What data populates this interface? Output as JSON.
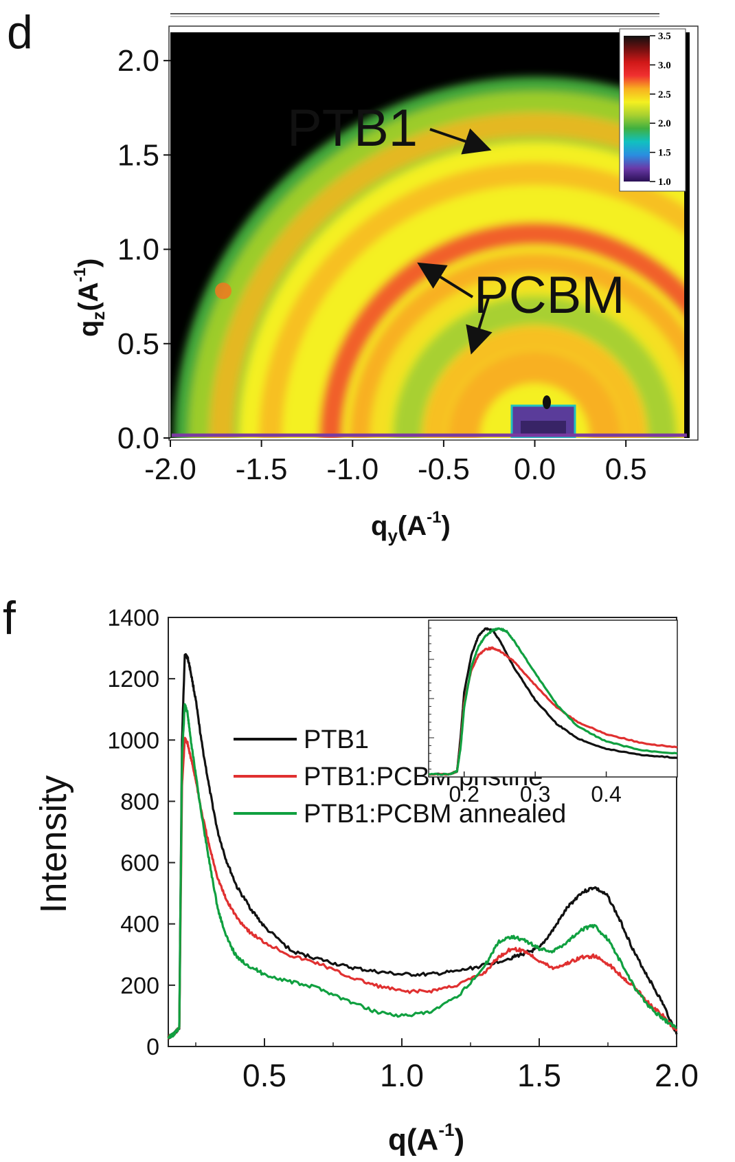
{
  "chart_data": [
    {
      "panel": "d",
      "type": "heatmap",
      "xlabel": "q",
      "xlabel_sub": "y",
      "xlabel_unit": "(A",
      "xlabel_exp": "-1",
      "xlabel_close": ")",
      "ylabel": "q",
      "ylabel_sub": "z",
      "ylabel_unit": "(A",
      "ylabel_exp": "-1",
      "ylabel_close": ")",
      "xlim": [
        -2.0,
        0.85
      ],
      "ylim": [
        0.0,
        2.15
      ],
      "x_ticks": [
        "-2.0",
        "-1.5",
        "-1.0",
        "-0.5",
        "0.0",
        "0.5"
      ],
      "x_tick_values": [
        -2.0,
        -1.5,
        -1.0,
        -0.5,
        0.0,
        0.5
      ],
      "y_ticks": [
        "0.0",
        "0.5",
        "1.0",
        "1.5",
        "2.0"
      ],
      "y_tick_values": [
        0.0,
        0.5,
        1.0,
        1.5,
        2.0
      ],
      "colorbar": {
        "range": [
          1.0,
          3.5
        ],
        "ticks": [
          "3.5",
          "3.0",
          "2.5",
          "2.0",
          "1.5",
          "1.0"
        ],
        "tick_values": [
          3.5,
          3.0,
          2.5,
          2.0,
          1.5,
          1.0
        ],
        "colors": [
          "#2a1055",
          "#6a3aa8",
          "#2a8ee0",
          "#10c0c0",
          "#40b040",
          "#a8d030",
          "#f4f020",
          "#f8b020",
          "#f03030",
          "#d01818",
          "#701010",
          "#101010"
        ]
      },
      "rings": [
        {
          "q": 1.72,
          "intensity": 2.45
        },
        {
          "q": 1.45,
          "intensity": 2.3
        },
        {
          "q": 1.12,
          "intensity": 2.55
        },
        {
          "q": 0.84,
          "intensity": 2.2
        },
        {
          "q": 0.55,
          "intensity": 2.5
        }
      ],
      "annotations": [
        {
          "text": "PTB1",
          "points_to": [
            -0.2,
            1.52
          ]
        },
        {
          "text": "PCBM",
          "points_to": [
            [
              -0.72,
              0.92
            ],
            [
              -0.35,
              0.45
            ]
          ]
        }
      ],
      "colors": {
        "background_fill": "#42a83a",
        "outside": "#000000"
      }
    },
    {
      "panel": "f",
      "type": "line",
      "xlabel": "q",
      "xlabel_unit": "(A",
      "xlabel_exp": "-1",
      "xlabel_close": ")",
      "ylabel": "Intensity",
      "xlim": [
        0.15,
        2.0
      ],
      "ylim": [
        0,
        1400
      ],
      "x_ticks": [
        "0.5",
        "1.0",
        "1.5",
        "2.0"
      ],
      "x_tick_values": [
        0.5,
        1.0,
        1.5,
        2.0
      ],
      "y_ticks": [
        "0",
        "200",
        "400",
        "600",
        "800",
        "1000",
        "1200",
        "1400"
      ],
      "y_tick_values": [
        0,
        200,
        400,
        600,
        800,
        1000,
        1200,
        1400
      ],
      "legend": "center-right",
      "series": [
        {
          "name": "PTB1",
          "color": "#111111",
          "x": [
            0.15,
            0.17,
            0.19,
            0.2,
            0.21,
            0.22,
            0.23,
            0.25,
            0.27,
            0.3,
            0.33,
            0.36,
            0.4,
            0.45,
            0.5,
            0.6,
            0.7,
            0.8,
            0.9,
            1.0,
            1.1,
            1.2,
            1.3,
            1.4,
            1.45,
            1.5,
            1.55,
            1.6,
            1.65,
            1.7,
            1.75,
            1.8,
            1.85,
            1.9,
            1.95,
            2.0
          ],
          "y": [
            30,
            40,
            60,
            1000,
            1280,
            1270,
            1230,
            1130,
            1000,
            840,
            700,
            610,
            520,
            450,
            390,
            310,
            285,
            260,
            245,
            235,
            235,
            245,
            265,
            290,
            305,
            320,
            380,
            450,
            500,
            520,
            490,
            400,
            300,
            220,
            140,
            40
          ]
        },
        {
          "name": "PTB1:PCBM pristine",
          "color": "#e03030",
          "x": [
            0.15,
            0.17,
            0.19,
            0.2,
            0.21,
            0.22,
            0.23,
            0.25,
            0.27,
            0.3,
            0.33,
            0.36,
            0.4,
            0.45,
            0.5,
            0.6,
            0.7,
            0.8,
            0.9,
            1.0,
            1.1,
            1.2,
            1.3,
            1.35,
            1.4,
            1.45,
            1.5,
            1.55,
            1.6,
            1.65,
            1.7,
            1.75,
            1.8,
            1.85,
            1.9,
            1.95,
            2.0
          ],
          "y": [
            30,
            40,
            60,
            850,
            1005,
            990,
            950,
            870,
            770,
            650,
            550,
            480,
            420,
            370,
            340,
            295,
            270,
            230,
            200,
            180,
            180,
            200,
            240,
            290,
            320,
            310,
            280,
            255,
            270,
            290,
            295,
            270,
            230,
            190,
            140,
            100,
            50
          ]
        },
        {
          "name": "PTB1:PCBM annealed",
          "color": "#10a040",
          "x": [
            0.15,
            0.17,
            0.19,
            0.2,
            0.21,
            0.22,
            0.23,
            0.25,
            0.27,
            0.3,
            0.33,
            0.36,
            0.4,
            0.45,
            0.5,
            0.6,
            0.7,
            0.8,
            0.9,
            1.0,
            1.1,
            1.2,
            1.3,
            1.35,
            1.4,
            1.45,
            1.5,
            1.55,
            1.6,
            1.65,
            1.7,
            1.75,
            1.8,
            1.85,
            1.9,
            1.95,
            2.0
          ],
          "y": [
            30,
            40,
            60,
            950,
            1115,
            1090,
            1010,
            890,
            760,
            600,
            450,
            360,
            290,
            260,
            235,
            210,
            190,
            150,
            115,
            100,
            110,
            160,
            260,
            340,
            360,
            345,
            320,
            310,
            340,
            380,
            395,
            350,
            270,
            190,
            130,
            90,
            60
          ]
        }
      ],
      "inset": {
        "xlim": [
          0.15,
          0.5
        ],
        "ylim": [
          0,
          1.0
        ],
        "x_ticks": [
          "0.2",
          "0.3",
          "0.4"
        ],
        "x_tick_values": [
          0.2,
          0.3,
          0.4
        ],
        "series": [
          {
            "name": "PTB1",
            "color": "#111111",
            "x": [
              0.15,
              0.18,
              0.19,
              0.195,
              0.2,
              0.21,
              0.22,
              0.23,
              0.24,
              0.25,
              0.27,
              0.3,
              0.33,
              0.36,
              0.4,
              0.45,
              0.5
            ],
            "y": [
              0.0,
              0.0,
              0.02,
              0.25,
              0.55,
              0.8,
              0.93,
              0.98,
              0.97,
              0.9,
              0.72,
              0.5,
              0.34,
              0.24,
              0.17,
              0.13,
              0.11
            ]
          },
          {
            "name": "PTB1:PCBM pristine",
            "color": "#e03030",
            "x": [
              0.15,
              0.18,
              0.19,
              0.195,
              0.2,
              0.21,
              0.22,
              0.23,
              0.24,
              0.25,
              0.27,
              0.3,
              0.33,
              0.36,
              0.4,
              0.45,
              0.5
            ],
            "y": [
              0.0,
              0.0,
              0.02,
              0.2,
              0.48,
              0.7,
              0.8,
              0.84,
              0.85,
              0.83,
              0.76,
              0.6,
              0.45,
              0.35,
              0.27,
              0.21,
              0.18
            ]
          },
          {
            "name": "PTB1:PCBM annealed",
            "color": "#10a040",
            "x": [
              0.15,
              0.18,
              0.19,
              0.195,
              0.2,
              0.21,
              0.22,
              0.23,
              0.24,
              0.25,
              0.26,
              0.27,
              0.3,
              0.33,
              0.36,
              0.4,
              0.45,
              0.5
            ],
            "y": [
              0.0,
              0.0,
              0.02,
              0.18,
              0.45,
              0.72,
              0.86,
              0.93,
              0.97,
              0.98,
              0.96,
              0.9,
              0.68,
              0.47,
              0.32,
              0.22,
              0.16,
              0.14
            ]
          }
        ]
      }
    }
  ],
  "labels": {
    "panel_d": "d",
    "panel_f": "f"
  }
}
